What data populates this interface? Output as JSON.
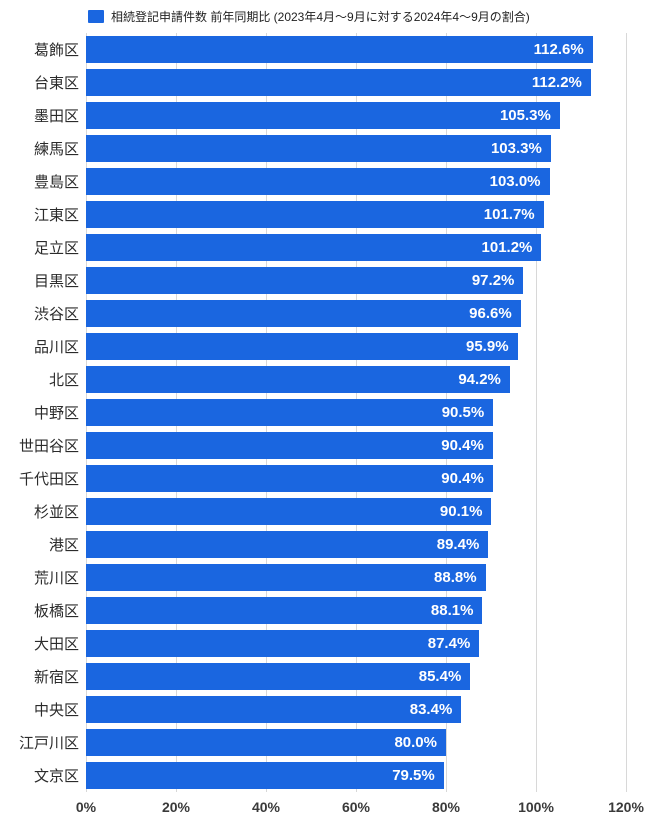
{
  "legend": {
    "label": "相続登記申請件数 前年同期比 (2023年4月〜9月に対する2024年4〜9月の割合)",
    "color": "#1a66e0"
  },
  "chart_data": {
    "type": "bar",
    "orientation": "horizontal",
    "title": "",
    "xlabel": "",
    "ylabel": "",
    "bar_color": "#1a66e0",
    "grid": true,
    "legend_position": "top",
    "xlim": [
      0,
      120
    ],
    "x_ticks": [
      "0%",
      "20%",
      "40%",
      "60%",
      "80%",
      "100%",
      "120%"
    ],
    "categories": [
      "葛飾区",
      "台東区",
      "墨田区",
      "練馬区",
      "豊島区",
      "江東区",
      "足立区",
      "目黒区",
      "渋谷区",
      "品川区",
      "北区",
      "中野区",
      "世田谷区",
      "千代田区",
      "杉並区",
      "港区",
      "荒川区",
      "板橋区",
      "大田区",
      "新宿区",
      "中央区",
      "江戸川区",
      "文京区"
    ],
    "values": [
      112.6,
      112.2,
      105.3,
      103.3,
      103.0,
      101.7,
      101.2,
      97.2,
      96.6,
      95.9,
      94.2,
      90.5,
      90.4,
      90.4,
      90.1,
      89.4,
      88.8,
      88.1,
      87.4,
      85.4,
      83.4,
      80.0,
      79.5
    ],
    "value_labels": [
      "112.6%",
      "112.2%",
      "105.3%",
      "103.3%",
      "103.0%",
      "101.7%",
      "101.2%",
      "97.2%",
      "96.6%",
      "95.9%",
      "94.2%",
      "90.5%",
      "90.4%",
      "90.4%",
      "90.1%",
      "89.4%",
      "88.8%",
      "88.1%",
      "87.4%",
      "85.4%",
      "83.4%",
      "80.0%",
      "79.5%"
    ]
  }
}
